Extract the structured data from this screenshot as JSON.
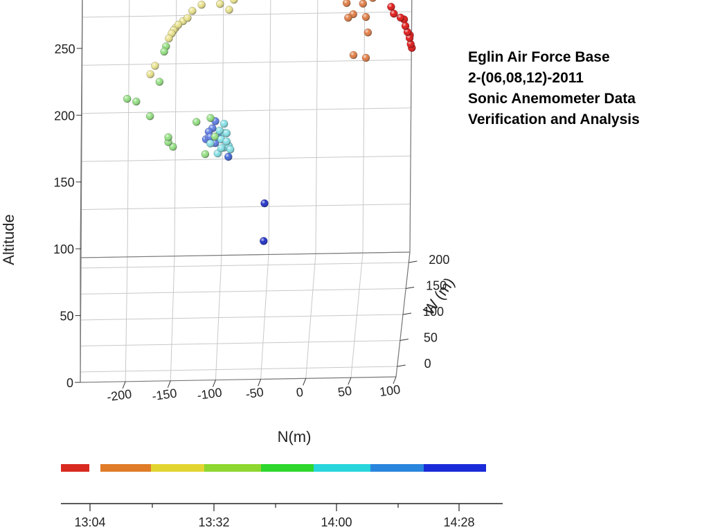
{
  "annotation": {
    "lines": [
      "Eglin Air Force Base",
      "2-(06,08,12)-2011",
      "Sonic Anemometer Data",
      "Verification and Analysis"
    ]
  },
  "chart_data": {
    "type": "scatter",
    "projection": "3d",
    "grid": true,
    "axes": {
      "x": {
        "label": "N(m)",
        "range": [
          -250,
          100
        ],
        "ticks": [
          "-200",
          "-150",
          "-100",
          "-50",
          "0",
          "50",
          "100"
        ]
      },
      "y": {
        "label": "W (m)",
        "range": [
          -20,
          220
        ],
        "ticks": [
          "0",
          "50",
          "100",
          "150",
          "200"
        ]
      },
      "z": {
        "label": "Altitude",
        "range": [
          0,
          280
        ],
        "ticks": [
          "0",
          "50",
          "100",
          "150",
          "200",
          "250"
        ]
      }
    },
    "colorbar": {
      "colors": [
        "#d82a20",
        "#e07c28",
        "#e2d431",
        "#8ed630",
        "#2ed62e",
        "#28d5dc",
        "#2a85dd",
        "#1a2bd8"
      ],
      "ticks": [
        "13:04",
        "13:32",
        "14:00",
        "14:28"
      ]
    },
    "series": [
      {
        "color": "#e01818",
        "points": [
          [
            85,
            100,
            268
          ],
          [
            88,
            100,
            262
          ],
          [
            95,
            105,
            258
          ],
          [
            100,
            110,
            250
          ],
          [
            102,
            115,
            244
          ],
          [
            104,
            120,
            238
          ],
          [
            105,
            124,
            232
          ],
          [
            106,
            128,
            228
          ],
          [
            104,
            125,
            240
          ],
          [
            98,
            118,
            255
          ]
        ]
      },
      {
        "color": "#e07d45",
        "points": [
          [
            20,
            60,
            286
          ],
          [
            28,
            70,
            286
          ],
          [
            40,
            80,
            284
          ],
          [
            50,
            85,
            284
          ],
          [
            60,
            95,
            280
          ],
          [
            65,
            100,
            276
          ],
          [
            55,
            90,
            272
          ],
          [
            45,
            80,
            264
          ],
          [
            40,
            70,
            262
          ],
          [
            58,
            95,
            260
          ],
          [
            60,
            100,
            246
          ],
          [
            45,
            90,
            228
          ],
          [
            58,
            100,
            224
          ],
          [
            38,
            75,
            274
          ]
        ]
      },
      {
        "color": "#e9e28d",
        "points": [
          [
            -95,
            80,
            290
          ],
          [
            -90,
            80,
            284
          ],
          [
            -85,
            80,
            278
          ],
          [
            -80,
            80,
            282
          ],
          [
            -90,
            75,
            270
          ],
          [
            -100,
            75,
            275
          ],
          [
            -105,
            80,
            290
          ],
          [
            -110,
            75,
            285
          ],
          [
            -120,
            70,
            275
          ],
          [
            -130,
            70,
            270
          ],
          [
            -135,
            60,
            265
          ],
          [
            -140,
            65,
            262
          ],
          [
            -145,
            55,
            260
          ],
          [
            -148,
            60,
            257
          ],
          [
            -150,
            50,
            256
          ],
          [
            -152,
            45,
            254
          ],
          [
            -155,
            45,
            250
          ],
          [
            -175,
            40,
            222
          ],
          [
            -170,
            45,
            228
          ]
        ]
      },
      {
        "color": "#93df82",
        "points": [
          [
            -160,
            40,
            240
          ],
          [
            -158,
            42,
            244
          ],
          [
            -165,
            45,
            215
          ],
          [
            -190,
            10,
            205
          ],
          [
            -200,
            5,
            208
          ],
          [
            -175,
            30,
            190
          ],
          [
            -155,
            45,
            170
          ],
          [
            -155,
            50,
            165
          ],
          [
            -150,
            55,
            160
          ],
          [
            -125,
            80,
            175
          ],
          [
            -110,
            95,
            175
          ],
          [
            -105,
            90,
            160
          ],
          [
            -115,
            70,
            150
          ]
        ]
      },
      {
        "color": "#86e0e6",
        "points": [
          [
            -95,
            85,
            172
          ],
          [
            -100,
            90,
            165
          ],
          [
            -92,
            80,
            158
          ],
          [
            -88,
            85,
            150
          ],
          [
            -95,
            95,
            162
          ],
          [
            -100,
            100,
            160
          ],
          [
            -98,
            88,
            158
          ],
          [
            -105,
            100,
            155
          ],
          [
            -110,
            95,
            153
          ],
          [
            -90,
            90,
            152
          ],
          [
            -92,
            80,
            165
          ],
          [
            -95,
            100,
            148
          ],
          [
            -102,
            92,
            145
          ],
          [
            -98,
            90,
            150
          ]
        ]
      },
      {
        "color": "#5f7ee6",
        "points": [
          [
            -105,
            105,
            170
          ],
          [
            -108,
            100,
            165
          ],
          [
            -110,
            98,
            158
          ],
          [
            -112,
            100,
            162
          ],
          [
            -115,
            102,
            155
          ],
          [
            -110,
            108,
            150
          ],
          [
            -105,
            100,
            152
          ],
          [
            -112,
            100,
            157
          ],
          [
            -100,
            100,
            160
          ],
          [
            -108,
            105,
            155
          ]
        ]
      },
      {
        "color": "#4066d6",
        "points": [
          [
            -90,
            80,
            145
          ]
        ]
      },
      {
        "color": "#1f2fc6",
        "points": [
          [
            -50,
            70,
            108
          ],
          [
            -50,
            50,
            83
          ]
        ]
      }
    ]
  }
}
